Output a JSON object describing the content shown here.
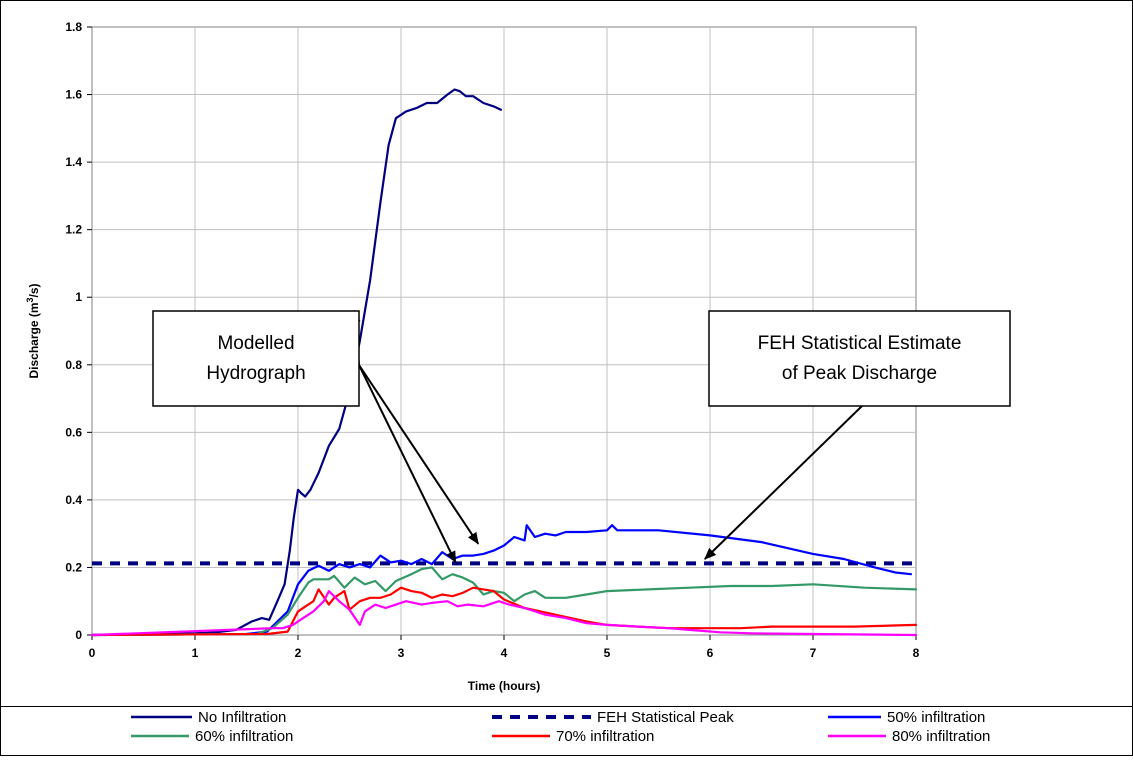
{
  "chart_data": {
    "type": "line",
    "title": "",
    "xlabel": "Time (hours)",
    "ylabel": {
      "pre": "Discharge (m",
      "sup": "3",
      "post": "/s)"
    },
    "xlim": [
      0,
      8
    ],
    "ylim": [
      0,
      1.8
    ],
    "xticks": [
      0,
      1,
      2,
      3,
      4,
      5,
      6,
      7,
      8
    ],
    "yticks": [
      0,
      0.2,
      0.4,
      0.6,
      0.8,
      1,
      1.2,
      1.4,
      1.6,
      1.8
    ],
    "ytick_labels": [
      "0",
      "0.2",
      "0.4",
      "0.6",
      "0.8",
      "1",
      "1.2",
      "1.4",
      "1.6",
      "1.8"
    ],
    "grid": true,
    "legend_position": "bottom",
    "series": [
      {
        "name": "No Infiltration",
        "color": "#000080",
        "style": "solid",
        "points": [
          [
            0,
            0
          ],
          [
            0.5,
            0.003
          ],
          [
            1,
            0.005
          ],
          [
            1.2,
            0.008
          ],
          [
            1.4,
            0.015
          ],
          [
            1.55,
            0.04
          ],
          [
            1.65,
            0.05
          ],
          [
            1.72,
            0.045
          ],
          [
            1.8,
            0.1
          ],
          [
            1.87,
            0.15
          ],
          [
            1.92,
            0.25
          ],
          [
            1.96,
            0.35
          ],
          [
            2.0,
            0.43
          ],
          [
            2.03,
            0.42
          ],
          [
            2.07,
            0.41
          ],
          [
            2.12,
            0.43
          ],
          [
            2.2,
            0.48
          ],
          [
            2.3,
            0.56
          ],
          [
            2.4,
            0.61
          ],
          [
            2.5,
            0.72
          ],
          [
            2.6,
            0.87
          ],
          [
            2.7,
            1.05
          ],
          [
            2.8,
            1.28
          ],
          [
            2.88,
            1.45
          ],
          [
            2.95,
            1.53
          ],
          [
            3.05,
            1.55
          ],
          [
            3.15,
            1.56
          ],
          [
            3.25,
            1.575
          ],
          [
            3.35,
            1.575
          ],
          [
            3.45,
            1.6
          ],
          [
            3.52,
            1.615
          ],
          [
            3.57,
            1.61
          ],
          [
            3.63,
            1.595
          ],
          [
            3.7,
            1.595
          ],
          [
            3.8,
            1.575
          ],
          [
            3.9,
            1.565
          ],
          [
            3.97,
            1.555
          ]
        ]
      },
      {
        "name": "FEH Statistical Peak",
        "color": "#000080",
        "style": "dashed",
        "points": [
          [
            0,
            0.212
          ],
          [
            8,
            0.212
          ]
        ]
      },
      {
        "name": "50% infiltration",
        "color": "#0000ff",
        "style": "solid",
        "points": [
          [
            0,
            0
          ],
          [
            1.5,
            0.003
          ],
          [
            1.7,
            0.01
          ],
          [
            1.8,
            0.04
          ],
          [
            1.9,
            0.07
          ],
          [
            2.0,
            0.15
          ],
          [
            2.1,
            0.19
          ],
          [
            2.2,
            0.205
          ],
          [
            2.3,
            0.19
          ],
          [
            2.4,
            0.21
          ],
          [
            2.5,
            0.2
          ],
          [
            2.6,
            0.21
          ],
          [
            2.7,
            0.2
          ],
          [
            2.8,
            0.235
          ],
          [
            2.9,
            0.215
          ],
          [
            3.0,
            0.22
          ],
          [
            3.1,
            0.21
          ],
          [
            3.2,
            0.225
          ],
          [
            3.3,
            0.21
          ],
          [
            3.4,
            0.245
          ],
          [
            3.5,
            0.225
          ],
          [
            3.6,
            0.235
          ],
          [
            3.7,
            0.235
          ],
          [
            3.8,
            0.24
          ],
          [
            3.9,
            0.25
          ],
          [
            4.0,
            0.265
          ],
          [
            4.1,
            0.29
          ],
          [
            4.2,
            0.28
          ],
          [
            4.22,
            0.325
          ],
          [
            4.3,
            0.29
          ],
          [
            4.4,
            0.3
          ],
          [
            4.5,
            0.295
          ],
          [
            4.6,
            0.305
          ],
          [
            4.8,
            0.305
          ],
          [
            5.0,
            0.31
          ],
          [
            5.05,
            0.325
          ],
          [
            5.1,
            0.31
          ],
          [
            5.2,
            0.31
          ],
          [
            5.5,
            0.31
          ],
          [
            6.0,
            0.295
          ],
          [
            6.5,
            0.275
          ],
          [
            7.0,
            0.24
          ],
          [
            7.3,
            0.225
          ],
          [
            7.6,
            0.2
          ],
          [
            7.8,
            0.185
          ],
          [
            7.95,
            0.18
          ]
        ]
      },
      {
        "name": "60% infiltration",
        "color": "#339966",
        "style": "solid",
        "points": [
          [
            0,
            0
          ],
          [
            1.6,
            0.003
          ],
          [
            1.75,
            0.02
          ],
          [
            1.9,
            0.06
          ],
          [
            2.0,
            0.11
          ],
          [
            2.1,
            0.155
          ],
          [
            2.15,
            0.165
          ],
          [
            2.3,
            0.165
          ],
          [
            2.35,
            0.175
          ],
          [
            2.45,
            0.14
          ],
          [
            2.55,
            0.17
          ],
          [
            2.65,
            0.15
          ],
          [
            2.75,
            0.16
          ],
          [
            2.85,
            0.13
          ],
          [
            2.95,
            0.16
          ],
          [
            3.1,
            0.18
          ],
          [
            3.2,
            0.195
          ],
          [
            3.3,
            0.2
          ],
          [
            3.4,
            0.165
          ],
          [
            3.5,
            0.18
          ],
          [
            3.6,
            0.17
          ],
          [
            3.7,
            0.155
          ],
          [
            3.8,
            0.12
          ],
          [
            3.9,
            0.13
          ],
          [
            4.0,
            0.125
          ],
          [
            4.1,
            0.1
          ],
          [
            4.2,
            0.12
          ],
          [
            4.3,
            0.13
          ],
          [
            4.4,
            0.11
          ],
          [
            4.6,
            0.11
          ],
          [
            4.8,
            0.12
          ],
          [
            5.0,
            0.13
          ],
          [
            5.4,
            0.135
          ],
          [
            5.8,
            0.14
          ],
          [
            6.2,
            0.145
          ],
          [
            6.6,
            0.145
          ],
          [
            7.0,
            0.15
          ],
          [
            7.5,
            0.14
          ],
          [
            8.0,
            0.135
          ]
        ]
      },
      {
        "name": "70% infiltration",
        "color": "#ff0000",
        "style": "solid",
        "points": [
          [
            0,
            0
          ],
          [
            1.7,
            0.003
          ],
          [
            1.9,
            0.01
          ],
          [
            2.0,
            0.07
          ],
          [
            2.1,
            0.09
          ],
          [
            2.15,
            0.1
          ],
          [
            2.2,
            0.135
          ],
          [
            2.3,
            0.09
          ],
          [
            2.35,
            0.11
          ],
          [
            2.45,
            0.13
          ],
          [
            2.5,
            0.075
          ],
          [
            2.6,
            0.1
          ],
          [
            2.7,
            0.11
          ],
          [
            2.8,
            0.11
          ],
          [
            2.9,
            0.12
          ],
          [
            3.0,
            0.14
          ],
          [
            3.1,
            0.13
          ],
          [
            3.2,
            0.125
          ],
          [
            3.3,
            0.11
          ],
          [
            3.4,
            0.12
          ],
          [
            3.5,
            0.115
          ],
          [
            3.6,
            0.125
          ],
          [
            3.7,
            0.14
          ],
          [
            3.8,
            0.135
          ],
          [
            3.9,
            0.13
          ],
          [
            4.0,
            0.105
          ],
          [
            4.2,
            0.08
          ],
          [
            4.5,
            0.06
          ],
          [
            4.8,
            0.04
          ],
          [
            5.0,
            0.03
          ],
          [
            5.3,
            0.025
          ],
          [
            5.6,
            0.02
          ],
          [
            6.0,
            0.02
          ],
          [
            6.3,
            0.02
          ],
          [
            6.6,
            0.025
          ],
          [
            7.0,
            0.025
          ],
          [
            7.4,
            0.025
          ],
          [
            8.0,
            0.03
          ]
        ]
      },
      {
        "name": "80% infiltration",
        "color": "#ff00ff",
        "style": "solid",
        "points": [
          [
            0,
            0
          ],
          [
            1.75,
            0.02
          ],
          [
            1.85,
            0.02
          ],
          [
            1.95,
            0.03
          ],
          [
            2.05,
            0.05
          ],
          [
            2.15,
            0.07
          ],
          [
            2.25,
            0.1
          ],
          [
            2.3,
            0.13
          ],
          [
            2.4,
            0.1
          ],
          [
            2.5,
            0.075
          ],
          [
            2.6,
            0.03
          ],
          [
            2.65,
            0.07
          ],
          [
            2.75,
            0.09
          ],
          [
            2.85,
            0.08
          ],
          [
            2.95,
            0.09
          ],
          [
            3.05,
            0.1
          ],
          [
            3.2,
            0.09
          ],
          [
            3.3,
            0.095
          ],
          [
            3.45,
            0.1
          ],
          [
            3.55,
            0.085
          ],
          [
            3.65,
            0.09
          ],
          [
            3.8,
            0.085
          ],
          [
            3.95,
            0.1
          ],
          [
            4.05,
            0.09
          ],
          [
            4.2,
            0.08
          ],
          [
            4.4,
            0.06
          ],
          [
            4.6,
            0.05
          ],
          [
            4.8,
            0.035
          ],
          [
            5.0,
            0.03
          ],
          [
            5.3,
            0.025
          ],
          [
            5.6,
            0.02
          ],
          [
            5.8,
            0.015
          ],
          [
            6.1,
            0.008
          ],
          [
            6.4,
            0.005
          ],
          [
            7.0,
            0.003
          ],
          [
            8.0,
            0.0
          ]
        ]
      }
    ],
    "annotations": [
      {
        "lines": [
          "Modelled",
          "Hydrograph"
        ],
        "arrow_targets": [
          [
            2.55,
            0.96
          ],
          [
            3.75,
            0.27
          ],
          [
            3.53,
            0.215
          ]
        ]
      },
      {
        "lines": [
          "FEH Statistical Estimate",
          "of Peak Discharge"
        ],
        "arrow_targets": [
          [
            5.95,
            0.225
          ]
        ]
      }
    ]
  }
}
